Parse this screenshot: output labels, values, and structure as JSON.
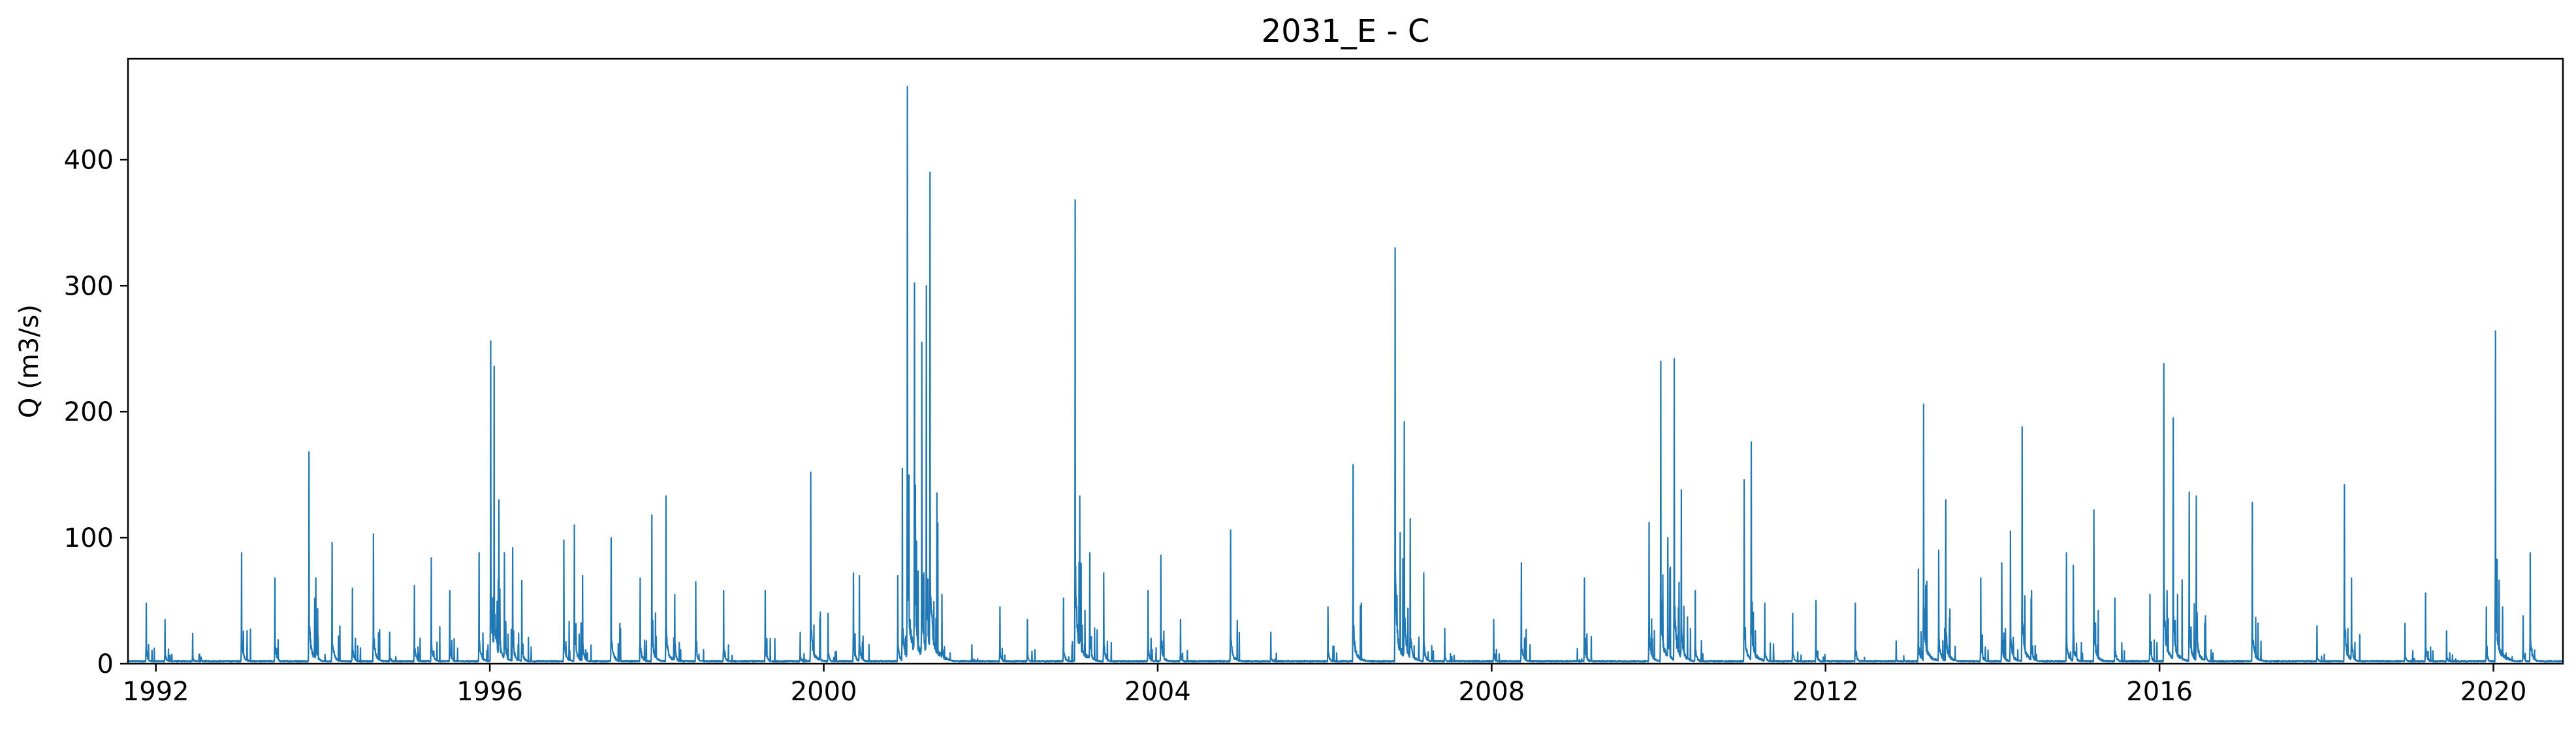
{
  "chart_data": {
    "type": "line",
    "title": "2031_E - C",
    "xlabel": "",
    "ylabel": "Q (m3/s)",
    "x_range": [
      "1991-09-01",
      "2020-10-31"
    ],
    "ylim": [
      0,
      480
    ],
    "x_ticks": [
      "1992",
      "1996",
      "2000",
      "2004",
      "2008",
      "2012",
      "2016",
      "2020"
    ],
    "y_ticks": [
      "0",
      "100",
      "200",
      "300",
      "400"
    ],
    "grid": false,
    "legend": "none",
    "series_color": "#1f77b4",
    "baseline": 2,
    "peaks": [
      [
        "1991-11-20",
        48
      ],
      [
        "1992-02-10",
        35
      ],
      [
        "1992-06-10",
        24
      ],
      [
        "1993-01-10",
        88
      ],
      [
        "1993-06-05",
        68
      ],
      [
        "1993-11-01",
        168
      ],
      [
        "1993-12-01",
        68
      ],
      [
        "1994-02-10",
        96
      ],
      [
        "1994-05-10",
        60
      ],
      [
        "1994-08-10",
        103
      ],
      [
        "1994-10-20",
        25
      ],
      [
        "1995-02-05",
        62
      ],
      [
        "1995-04-20",
        84
      ],
      [
        "1995-07-10",
        58
      ],
      [
        "1995-11-15",
        88
      ],
      [
        "1996-01-05",
        256
      ],
      [
        "1996-01-20",
        236
      ],
      [
        "1996-02-10",
        130
      ],
      [
        "1996-03-05",
        88
      ],
      [
        "1996-04-10",
        92
      ],
      [
        "1996-05-20",
        66
      ],
      [
        "1996-11-20",
        98
      ],
      [
        "1997-01-05",
        110
      ],
      [
        "1997-02-10",
        70
      ],
      [
        "1997-06-15",
        100
      ],
      [
        "1997-10-20",
        68
      ],
      [
        "1997-12-10",
        118
      ],
      [
        "1998-02-10",
        133
      ],
      [
        "1998-03-20",
        55
      ],
      [
        "1998-06-20",
        65
      ],
      [
        "1998-10-20",
        58
      ],
      [
        "1999-04-20",
        58
      ],
      [
        "1999-09-20",
        25
      ],
      [
        "1999-11-05",
        152
      ],
      [
        "2000-01-20",
        40
      ],
      [
        "2000-05-10",
        72
      ],
      [
        "2000-06-05",
        70
      ],
      [
        "2000-11-20",
        70
      ],
      [
        "2000-12-10",
        155
      ],
      [
        "2001-01-01",
        458
      ],
      [
        "2001-02-01",
        302
      ],
      [
        "2001-03-05",
        255
      ],
      [
        "2001-03-25",
        300
      ],
      [
        "2001-04-10",
        390
      ],
      [
        "2001-06-01",
        55
      ],
      [
        "2001-10-10",
        15
      ],
      [
        "2002-02-10",
        45
      ],
      [
        "2002-06-10",
        35
      ],
      [
        "2002-11-15",
        52
      ],
      [
        "2003-01-05",
        368
      ],
      [
        "2003-01-25",
        133
      ],
      [
        "2003-03-10",
        88
      ],
      [
        "2003-05-10",
        72
      ],
      [
        "2003-11-20",
        58
      ],
      [
        "2004-01-15",
        86
      ],
      [
        "2004-04-10",
        35
      ],
      [
        "2004-11-15",
        106
      ],
      [
        "2005-05-10",
        25
      ],
      [
        "2006-01-15",
        45
      ],
      [
        "2006-05-05",
        158
      ],
      [
        "2006-11-05",
        330
      ],
      [
        "2006-12-15",
        192
      ],
      [
        "2007-01-10",
        115
      ],
      [
        "2007-03-10",
        72
      ],
      [
        "2007-06-10",
        28
      ],
      [
        "2008-01-10",
        35
      ],
      [
        "2008-05-10",
        80
      ],
      [
        "2009-01-10",
        12
      ],
      [
        "2009-02-10",
        68
      ],
      [
        "2009-11-20",
        112
      ],
      [
        "2010-01-10",
        240
      ],
      [
        "2010-02-10",
        100
      ],
      [
        "2010-03-10",
        242
      ],
      [
        "2010-04-10",
        138
      ],
      [
        "2010-06-10",
        58
      ],
      [
        "2011-01-10",
        146
      ],
      [
        "2011-02-10",
        176
      ],
      [
        "2011-04-10",
        48
      ],
      [
        "2011-08-10",
        40
      ],
      [
        "2011-11-20",
        50
      ],
      [
        "2012-05-10",
        48
      ],
      [
        "2012-11-05",
        18
      ],
      [
        "2013-02-10",
        75
      ],
      [
        "2013-03-05",
        206
      ],
      [
        "2013-05-10",
        90
      ],
      [
        "2013-06-10",
        130
      ],
      [
        "2013-11-10",
        68
      ],
      [
        "2014-02-10",
        80
      ],
      [
        "2014-03-20",
        105
      ],
      [
        "2014-05-10",
        188
      ],
      [
        "2014-06-20",
        58
      ],
      [
        "2014-11-20",
        88
      ],
      [
        "2014-12-20",
        78
      ],
      [
        "2015-03-20",
        122
      ],
      [
        "2015-06-20",
        52
      ],
      [
        "2015-11-20",
        55
      ],
      [
        "2016-01-20",
        238
      ],
      [
        "2016-03-01",
        195
      ],
      [
        "2016-05-10",
        136
      ],
      [
        "2016-06-10",
        133
      ],
      [
        "2016-07-20",
        38
      ],
      [
        "2017-02-10",
        128
      ],
      [
        "2017-11-20",
        30
      ],
      [
        "2018-03-20",
        142
      ],
      [
        "2018-04-20",
        68
      ],
      [
        "2018-12-10",
        32
      ],
      [
        "2019-03-10",
        56
      ],
      [
        "2019-06-10",
        26
      ],
      [
        "2019-12-01",
        45
      ],
      [
        "2020-01-10",
        264
      ],
      [
        "2020-02-10",
        45
      ],
      [
        "2020-05-10",
        38
      ],
      [
        "2020-06-10",
        88
      ]
    ]
  }
}
